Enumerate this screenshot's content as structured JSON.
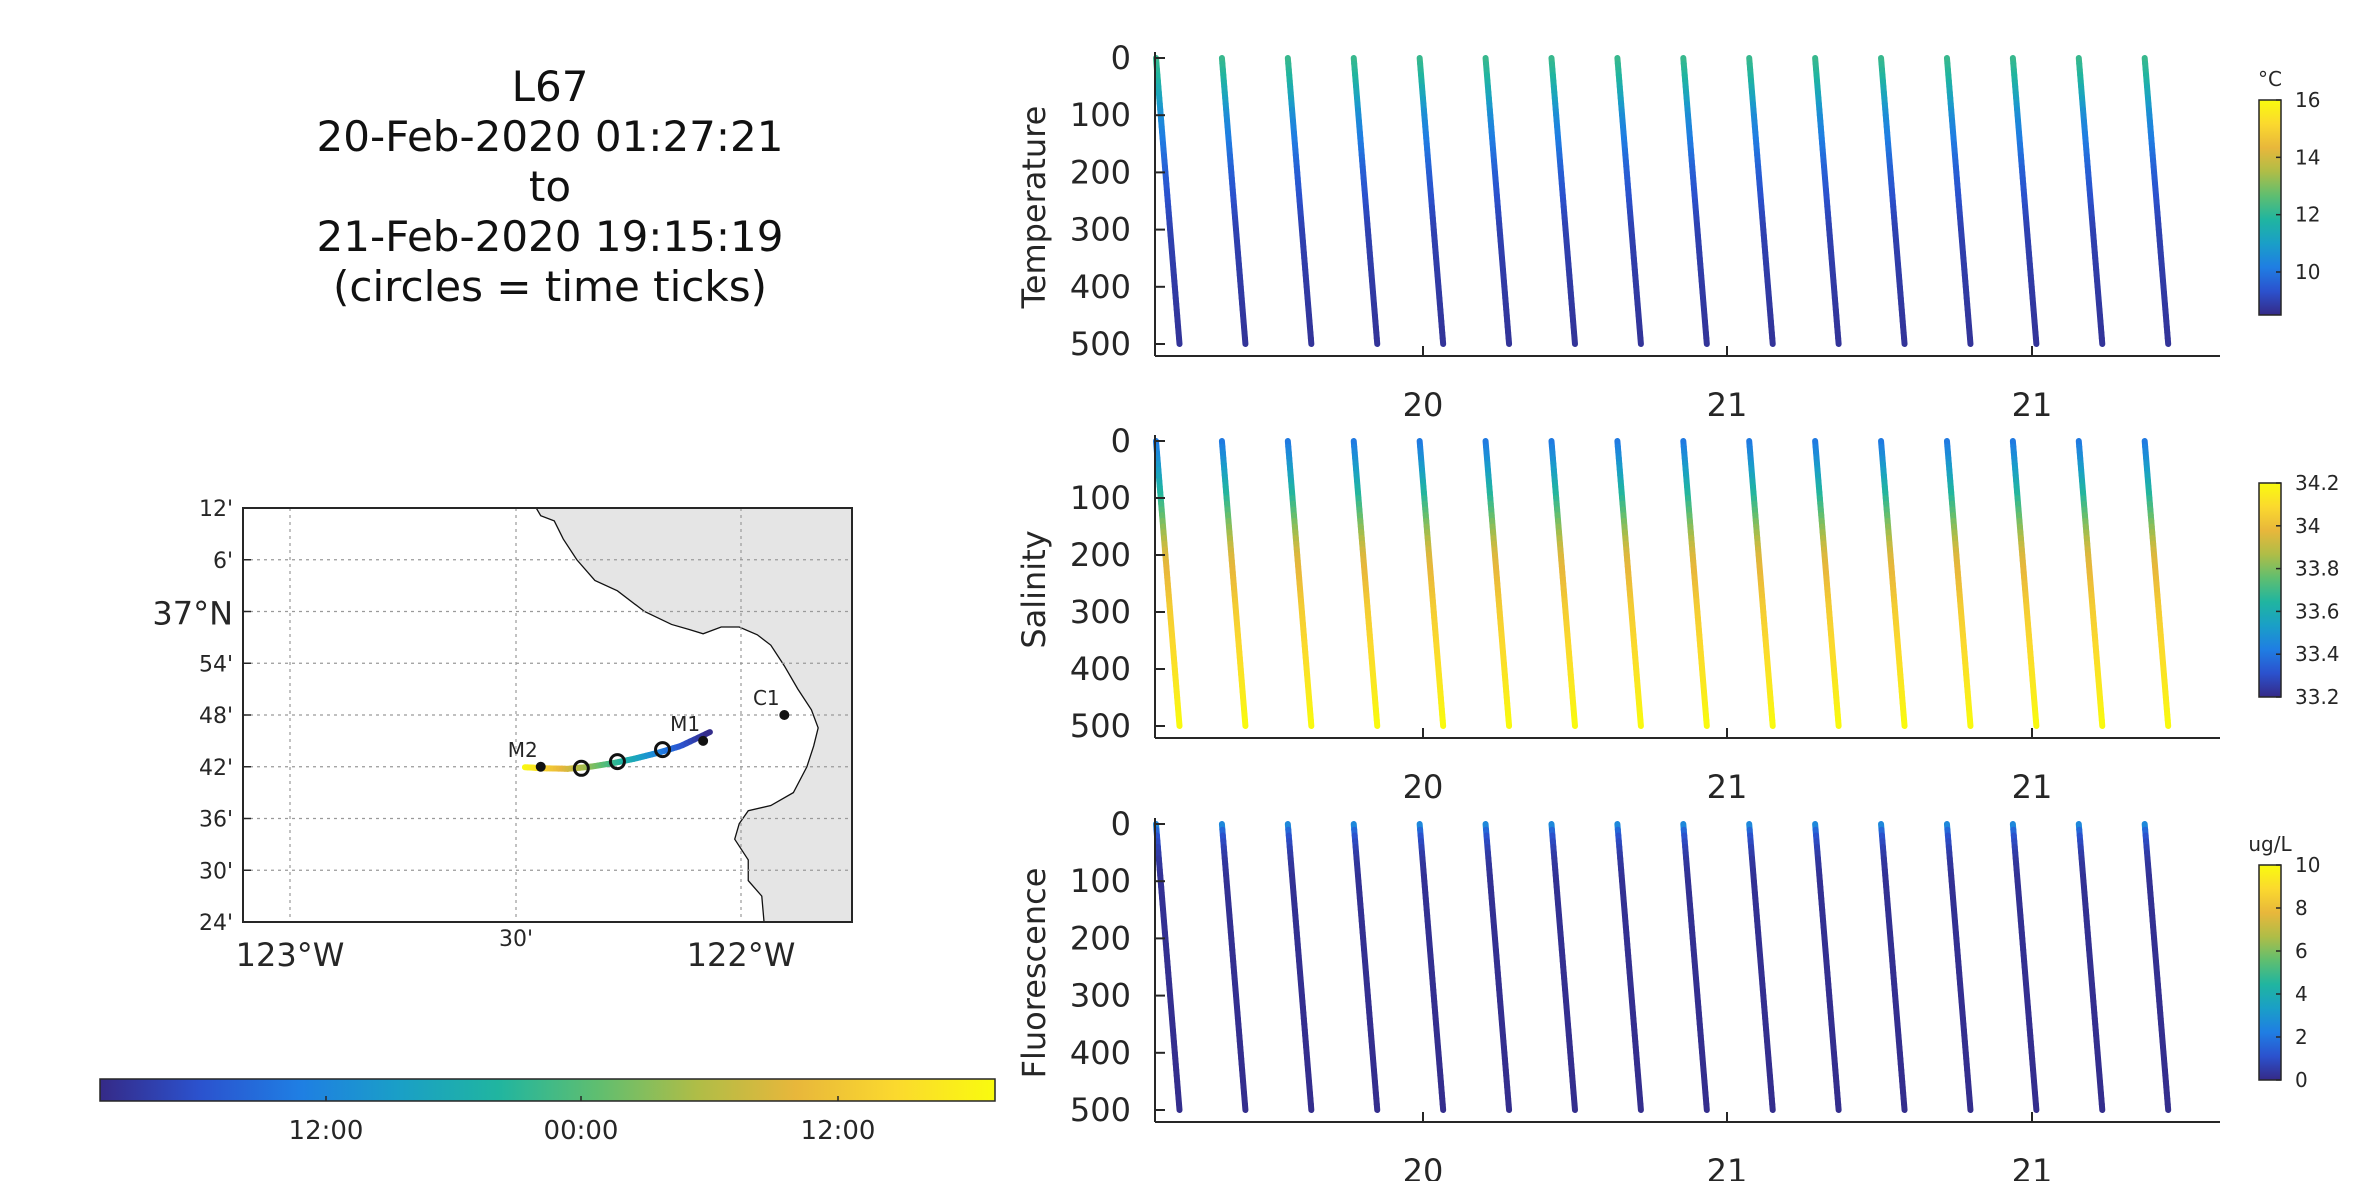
{
  "title_lines": [
    "L67",
    "20-Feb-2020 01:27:21",
    "to",
    "21-Feb-2020 19:15:19",
    "(circles = time ticks)"
  ],
  "colors": {
    "parula": [
      "#352a87",
      "#2b52ce",
      "#1f7ee3",
      "#1a9fc7",
      "#20b5a0",
      "#5fbe70",
      "#afbd47",
      "#e8b73b",
      "#fbd92e",
      "#f9fb0e"
    ],
    "land": "#e5e5e5",
    "axis": "#262626",
    "grid": "#9a9a9a"
  },
  "map": {
    "lat_ticks": [
      "12'",
      "6'",
      "37°N",
      "54'",
      "48'",
      "42'",
      "36'",
      "30'",
      "24'"
    ],
    "lon_ticks": [
      "123°W",
      "30'",
      "122°W"
    ],
    "lat_range": [
      36.4,
      37.2
    ],
    "lon_range": [
      -123.05,
      -121.7
    ],
    "stations": [
      {
        "label": "M2",
        "lon": -122.39,
        "lat": 36.7
      },
      {
        "label": "M1",
        "lon": -122.03,
        "lat": 36.75
      },
      {
        "label": "C1",
        "lon": -121.85,
        "lat": 36.8
      }
    ],
    "time_tick_circles": [
      {
        "lon": -122.3,
        "lat": 36.697
      },
      {
        "lon": -122.22,
        "lat": 36.71
      },
      {
        "lon": -122.12,
        "lat": 36.733
      }
    ]
  },
  "time_colorbar": {
    "labels": [
      "12:00",
      "00:00",
      "12:00"
    ]
  },
  "chart_data": [
    {
      "type": "scatter",
      "ylabel": "Temperature",
      "colorbar_units": "°C",
      "colorbar_ticks": [
        "16",
        "14",
        "12",
        "10"
      ],
      "clim": [
        8.5,
        16
      ],
      "xtick_labels": [
        "20",
        "21",
        "21"
      ],
      "ytick_labels": [
        "0",
        "100",
        "200",
        "300",
        "400",
        "500"
      ],
      "ylim": [
        0,
        500
      ],
      "profiles": 16,
      "surface_value": 12,
      "depth_profile": [
        [
          0,
          12.2
        ],
        [
          40,
          11.8
        ],
        [
          100,
          10.6
        ],
        [
          200,
          9.6
        ],
        [
          300,
          9.0
        ],
        [
          500,
          8.7
        ]
      ]
    },
    {
      "type": "scatter",
      "ylabel": "Salinity",
      "colorbar_ticks": [
        "34.2",
        "34",
        "33.8",
        "33.6",
        "33.4",
        "33.2"
      ],
      "clim": [
        33.2,
        34.2
      ],
      "xtick_labels": [
        "20",
        "21",
        "21"
      ],
      "ytick_labels": [
        "0",
        "100",
        "200",
        "300",
        "400",
        "500"
      ],
      "ylim": [
        0,
        500
      ],
      "profiles": 16,
      "depth_profile": [
        [
          0,
          33.4
        ],
        [
          60,
          33.55
        ],
        [
          130,
          33.75
        ],
        [
          200,
          33.95
        ],
        [
          300,
          34.05
        ],
        [
          450,
          34.15
        ],
        [
          500,
          34.2
        ]
      ]
    },
    {
      "type": "scatter",
      "ylabel": "Fluorescence",
      "colorbar_units": "ug/L",
      "colorbar_ticks": [
        "10",
        "8",
        "6",
        "4",
        "2",
        "0"
      ],
      "clim": [
        0,
        10
      ],
      "xtick_labels": [
        "20",
        "21",
        "21"
      ],
      "ytick_labels": [
        "0",
        "100",
        "200",
        "300",
        "400",
        "500"
      ],
      "ylim": [
        0,
        500
      ],
      "profiles": 16,
      "depth_profile": [
        [
          0,
          3.0
        ],
        [
          20,
          1.2
        ],
        [
          60,
          0.4
        ],
        [
          100,
          0.2
        ],
        [
          500,
          0.1
        ]
      ]
    }
  ]
}
